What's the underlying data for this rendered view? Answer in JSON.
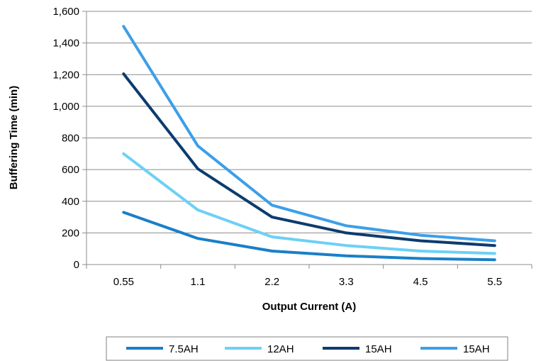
{
  "chart_data": {
    "type": "line",
    "categories": [
      "0.55",
      "1.1",
      "2.2",
      "3.3",
      "4.5",
      "5.5"
    ],
    "xlabel": "Output Current (A)",
    "ylabel": "Buffering Time (min)",
    "ylim": [
      0,
      1600
    ],
    "yticks": [
      0,
      200,
      400,
      600,
      800,
      1000,
      1200,
      1400,
      1600
    ],
    "ytick_labels": [
      "0",
      "200",
      "400",
      "600",
      "800",
      "1,000",
      "1,200",
      "1,400",
      "1,600"
    ],
    "grid": "horizontal",
    "legend_position": "bottom",
    "series": [
      {
        "name": "7.5AH",
        "color": "#1a7fc8",
        "values": [
          330,
          165,
          85,
          55,
          38,
          30
        ]
      },
      {
        "name": "12AH",
        "color": "#6dd0f5",
        "values": [
          700,
          345,
          175,
          120,
          85,
          70
        ]
      },
      {
        "name": "15AH",
        "color": "#0c3c6e",
        "values": [
          1205,
          605,
          300,
          200,
          150,
          120
        ]
      },
      {
        "name": "15AH",
        "color": "#3c9fe8",
        "values": [
          1505,
          750,
          375,
          245,
          185,
          150
        ]
      }
    ]
  }
}
